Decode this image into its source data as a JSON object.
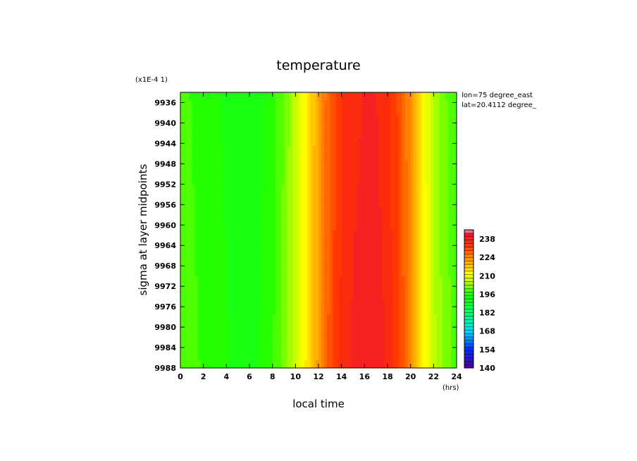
{
  "chart_data": {
    "type": "heatmap",
    "title": "temperature",
    "xlabel": "local time",
    "ylabel": "sigma at layer midpoints",
    "x_unit": "(hrs)",
    "y_scale_note": "(x1E-4 1)",
    "annotations": [
      "lon=75 degree_east",
      "lat=20.4112 degree_"
    ],
    "xlim": [
      0,
      24
    ],
    "ylim": [
      9934,
      9988
    ],
    "y_inverted": true,
    "x_ticks": [
      "0",
      "2",
      "4",
      "6",
      "8",
      "10",
      "12",
      "14",
      "16",
      "18",
      "20",
      "22",
      "24"
    ],
    "y_ticks": [
      "9936",
      "9940",
      "9944",
      "9948",
      "9952",
      "9956",
      "9960",
      "9964",
      "9968",
      "9972",
      "9976",
      "9980",
      "9984",
      "9988"
    ],
    "colorbar": {
      "min": 140,
      "max": 245,
      "tick_labels": [
        "140",
        "154",
        "168",
        "182",
        "196",
        "210",
        "224",
        "238"
      ]
    },
    "x": [
      0,
      1,
      2,
      3,
      4,
      5,
      6,
      7,
      8,
      9,
      10,
      11,
      12,
      13,
      14,
      15,
      16,
      17,
      18,
      19,
      20,
      21,
      22,
      23,
      24
    ],
    "profile_values": [
      199,
      198,
      197,
      196,
      195,
      194,
      194,
      195,
      197,
      201,
      207,
      214,
      222,
      230,
      235,
      237,
      238,
      238,
      236,
      232,
      224,
      214,
      206,
      201,
      199
    ]
  }
}
